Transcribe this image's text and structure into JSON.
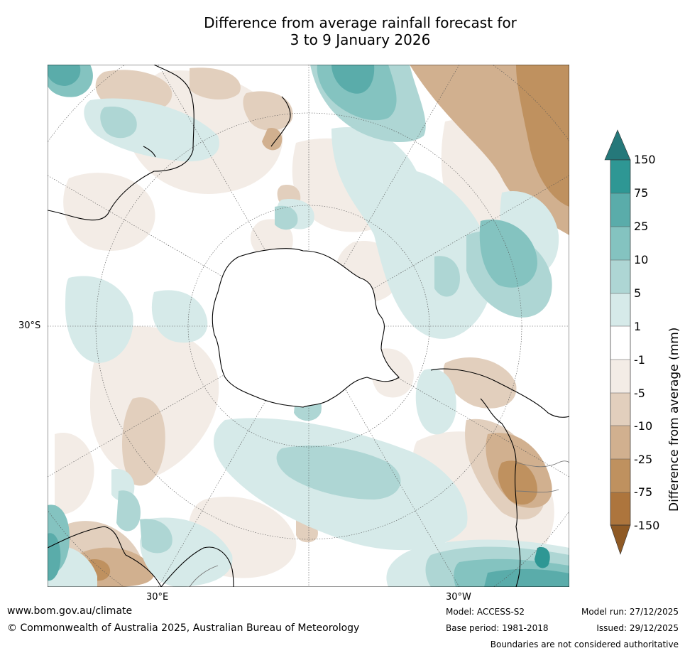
{
  "title": {
    "line1": "Difference from average rainfall forecast for",
    "line2": "3 to 9 January 2026"
  },
  "map": {
    "projection": "south-polar-stereographic",
    "lat_label": "30°S",
    "lon_labels": {
      "east": "30°E",
      "west": "30°W"
    }
  },
  "colorbar": {
    "title": "Difference from average (mm)",
    "ticks": [
      "150",
      "75",
      "25",
      "10",
      "5",
      "1",
      "-1",
      "-5",
      "-10",
      "-25",
      "-75",
      "-150"
    ],
    "colors": {
      "over": "#25787a",
      "c_75_150": "#2e9794",
      "c_25_75": "#5aacaa",
      "c_10_25": "#84c3c0",
      "c_5_10": "#aed6d4",
      "c_1_5": "#d6eae9",
      "c_-1_1": "#ffffff",
      "c_-5_-1": "#f3ece6",
      "c_-10_-5": "#e2cfbd",
      "c_-25_-10": "#d1b08f",
      "c_-75_-25": "#bf915f",
      "c_-150_-75": "#ad753d",
      "under": "#8f5a25"
    }
  },
  "footer": {
    "website": "www.bom.gov.au/climate",
    "copyright": "© Commonwealth of Australia 2025, Australian Bureau of Meteorology",
    "model": "Model: ACCESS-S2",
    "base_period": "Base period: 1981-2018",
    "model_run": "Model run: 27/12/2025",
    "issued": "Issued: 29/12/2025",
    "disclaimer": "Boundaries are not considered authoritative"
  }
}
